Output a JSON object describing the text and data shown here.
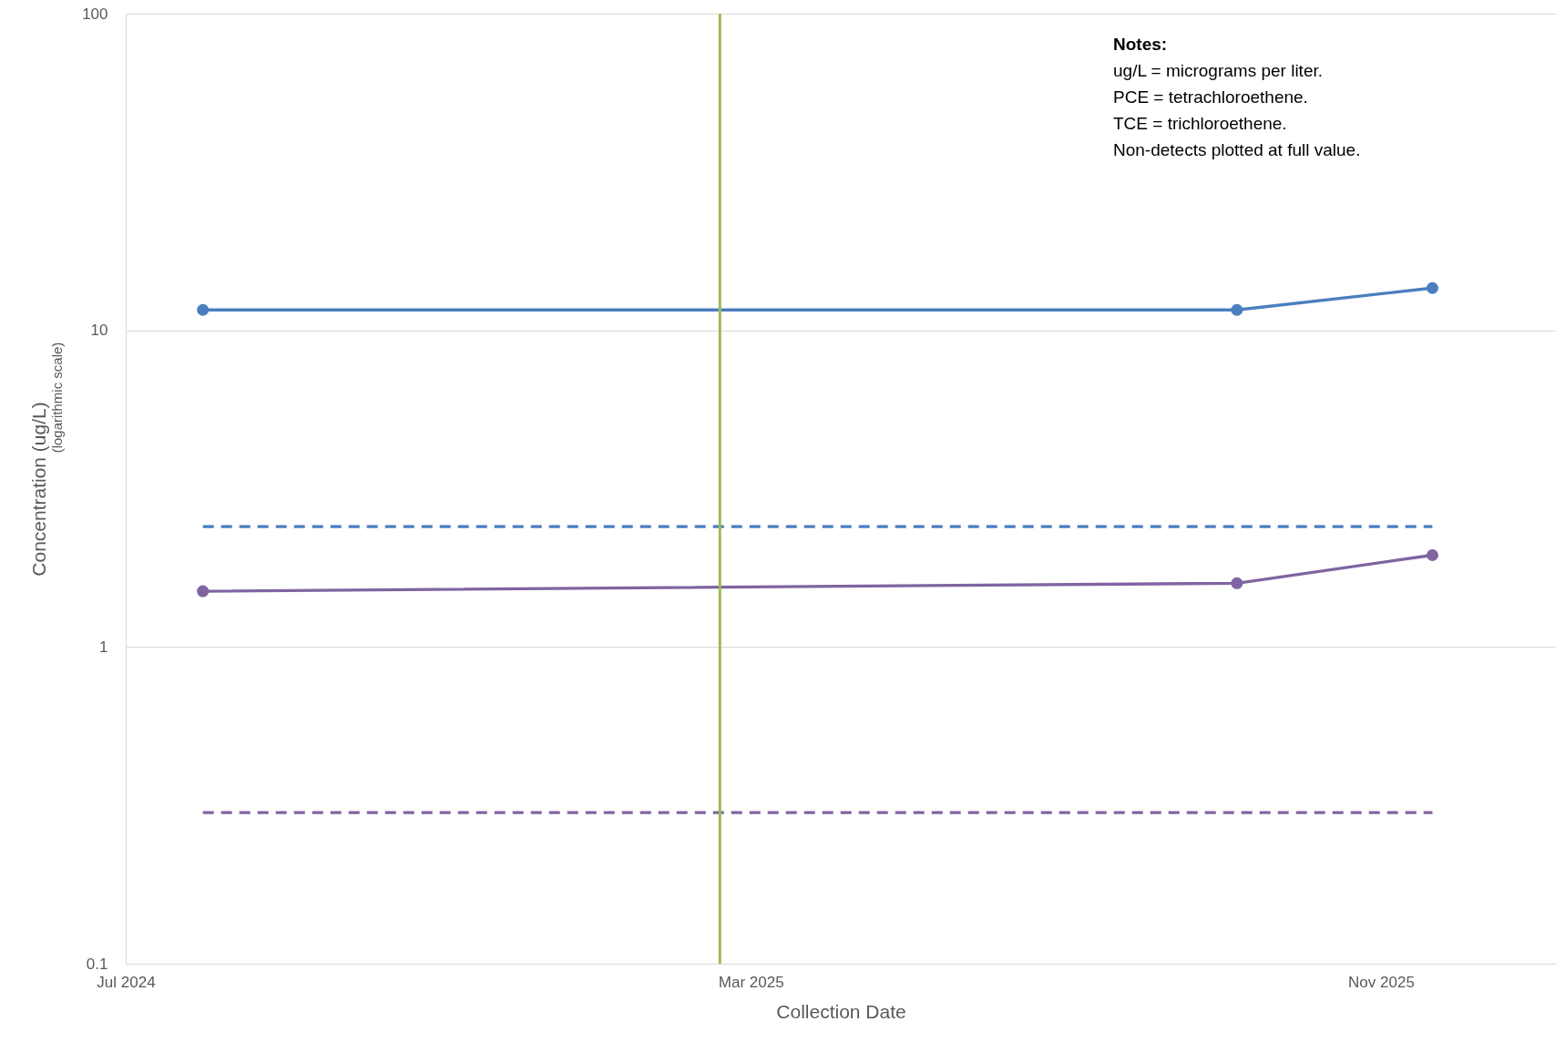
{
  "chart_data": {
    "type": "line",
    "xlabel": "Collection Date",
    "ylabel": "Concentration (ug/L)",
    "annotations": [
      "(logarithmic scale)",
      "Notes:",
      "ug/L = micrograms per liter.",
      "PCE = tetrachloroethene.",
      "TCE = trichloroethene.",
      "Non-detects plotted at full value."
    ],
    "log": "y",
    "grid": "y",
    "xlim": [
      "2024-07-01",
      "2026-01-08"
    ],
    "xticks": [
      {
        "value": "2024-07-01",
        "label": "Jul 2024"
      },
      {
        "value": "2025-03-01",
        "label": "Mar 2025"
      },
      {
        "value": "2025-11-01",
        "label": "Nov 2025"
      }
    ],
    "ylim": [
      0.1,
      100
    ],
    "yticks": [
      0.1,
      1,
      10,
      100
    ],
    "series": [
      {
        "color": "#4a7ebf",
        "x": [
          "2024-07-31",
          "2025-09-06",
          "2025-11-21"
        ],
        "values": [
          11.6,
          11.6,
          13.6
        ],
        "marker": "circle",
        "line_style": "solid"
      },
      {
        "color": "#8064a2",
        "x": [
          "2024-07-31",
          "2025-09-06",
          "2025-11-21"
        ],
        "values": [
          1.5,
          1.59,
          1.95
        ],
        "marker": "circle",
        "line_style": "solid"
      },
      {
        "color": "#4a7ebf",
        "x": [
          "2024-07-31",
          "2025-11-21"
        ],
        "values": [
          2.4,
          2.4
        ],
        "marker": "none",
        "line_style": "dashed"
      },
      {
        "color": "#8064a2",
        "x": [
          "2024-07-31",
          "2025-11-21"
        ],
        "values": [
          0.3,
          0.3
        ],
        "marker": "none",
        "line_style": "dashed"
      }
    ],
    "ref_lines": [
      {
        "axis": "x",
        "value": "2025-02-17",
        "color": "#9bbb59"
      }
    ]
  }
}
